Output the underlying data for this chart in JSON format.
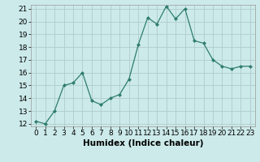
{
  "x": [
    0,
    1,
    2,
    3,
    4,
    5,
    6,
    7,
    8,
    9,
    10,
    11,
    12,
    13,
    14,
    15,
    16,
    17,
    18,
    19,
    20,
    21,
    22,
    23
  ],
  "y": [
    12.2,
    12.0,
    13.0,
    15.0,
    15.2,
    16.0,
    13.8,
    13.5,
    14.0,
    14.3,
    15.5,
    18.2,
    20.3,
    19.8,
    21.2,
    20.2,
    21.0,
    18.5,
    18.3,
    17.0,
    16.5,
    16.3,
    16.5,
    16.5
  ],
  "xlabel": "Humidex (Indice chaleur)",
  "ylim": [
    12,
    21
  ],
  "xlim": [
    -0.5,
    23.5
  ],
  "yticks": [
    12,
    13,
    14,
    15,
    16,
    17,
    18,
    19,
    20,
    21
  ],
  "xticks": [
    0,
    1,
    2,
    3,
    4,
    5,
    6,
    7,
    8,
    9,
    10,
    11,
    12,
    13,
    14,
    15,
    16,
    17,
    18,
    19,
    20,
    21,
    22,
    23
  ],
  "line_color": "#2e7d6e",
  "marker": "D",
  "marker_size": 2.0,
  "bg_color": "#cceaea",
  "grid_color": "#b0cccc",
  "label_fontsize": 7.5,
  "tick_fontsize": 6.5
}
